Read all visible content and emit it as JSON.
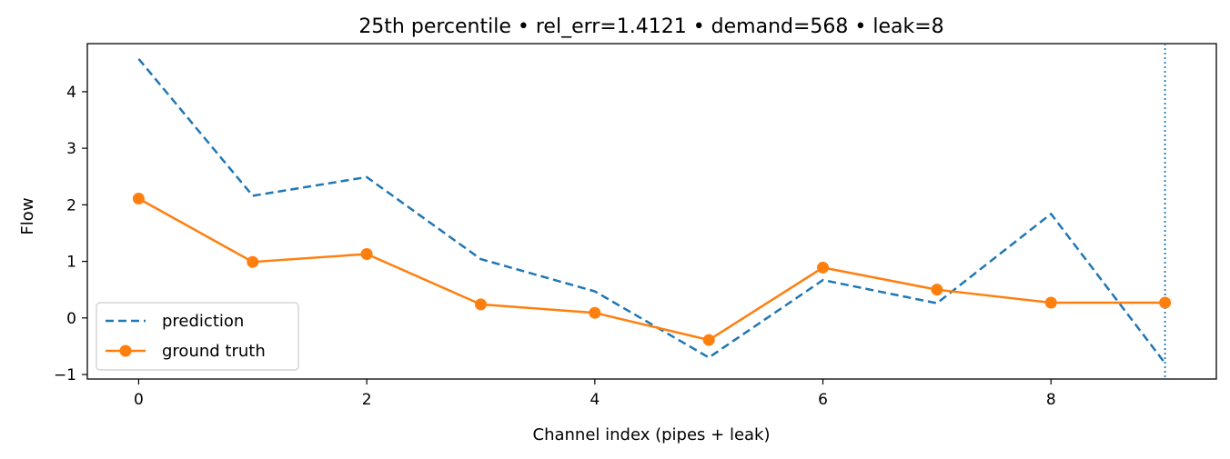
{
  "chart_data": {
    "type": "line",
    "title": "25th percentile • rel_err=1.4121 • demand=568 • leak=8",
    "xlabel": "Channel index (pipes + leak)",
    "ylabel": "Flow",
    "xlim": [
      -0.45,
      9.45
    ],
    "ylim": [
      -1.08,
      4.85
    ],
    "x_ticks": [
      0,
      2,
      4,
      6,
      8
    ],
    "y_ticks": [
      -1,
      0,
      1,
      2,
      3,
      4
    ],
    "y_tick_labels": [
      "−1",
      "0",
      "1",
      "2",
      "3",
      "4"
    ],
    "grid": false,
    "legend_position": "lower-left",
    "vline": {
      "x": 9,
      "style": "dotted",
      "color": "#1f77b4"
    },
    "x": [
      0,
      1,
      2,
      3,
      4,
      5,
      6,
      7,
      8,
      9
    ],
    "series": [
      {
        "name": "prediction",
        "style": "dashed",
        "color": "#1f77b4",
        "markers": false,
        "values": [
          4.58,
          2.16,
          2.49,
          1.04,
          0.47,
          -0.7,
          0.67,
          0.26,
          1.84,
          -0.8
        ]
      },
      {
        "name": "ground truth",
        "style": "solid",
        "color": "#ff7f0e",
        "markers": true,
        "values": [
          2.11,
          0.99,
          1.13,
          0.24,
          0.09,
          -0.39,
          0.89,
          0.5,
          0.27,
          0.27
        ]
      }
    ]
  }
}
